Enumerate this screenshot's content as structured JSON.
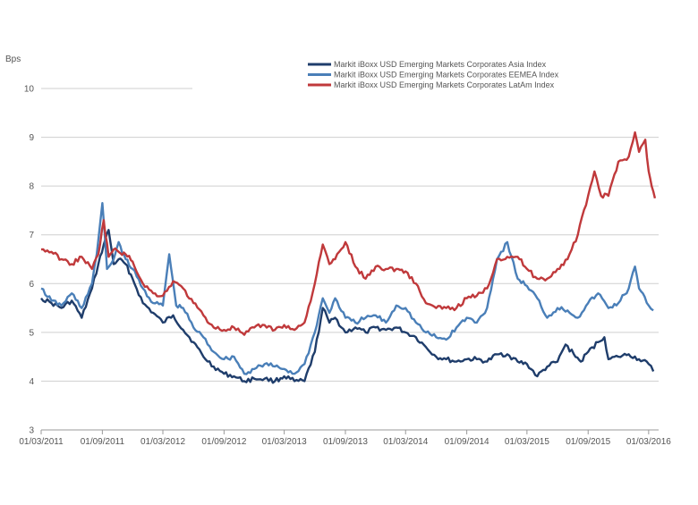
{
  "chart_data": {
    "type": "line",
    "ylabel": "Bps",
    "ylim": [
      3,
      10
    ],
    "yticks": [
      3,
      4,
      5,
      6,
      7,
      8,
      9,
      10
    ],
    "xlim": [
      "2011-03-01",
      "2016-03-31"
    ],
    "xtick_labels": [
      "01/03/2011",
      "01/09/2011",
      "01/03/2012",
      "01/09/2012",
      "01/03/2013",
      "01/09/2013",
      "01/03/2014",
      "01/09/2014",
      "01/03/2015",
      "01/09/2015",
      "01/03/2016"
    ],
    "xtick_dates": [
      "2011-03-01",
      "2011-09-01",
      "2012-03-01",
      "2012-09-01",
      "2013-03-01",
      "2013-09-01",
      "2014-03-01",
      "2014-09-01",
      "2015-03-01",
      "2015-09-01",
      "2016-03-01"
    ],
    "grid": true,
    "legend_position": "top-right",
    "series": [
      {
        "name": "Markit iBoxx USD Emerging Markets Corporates Asia Index",
        "color": "#1f3d6b",
        "points": [
          [
            "2011-03-01",
            5.7
          ],
          [
            "2011-04-01",
            5.6
          ],
          [
            "2011-05-01",
            5.5
          ],
          [
            "2011-06-01",
            5.65
          ],
          [
            "2011-07-01",
            5.3
          ],
          [
            "2011-08-01",
            5.9
          ],
          [
            "2011-08-20",
            6.4
          ],
          [
            "2011-09-05",
            6.8
          ],
          [
            "2011-09-20",
            7.1
          ],
          [
            "2011-10-05",
            6.4
          ],
          [
            "2011-10-20",
            6.5
          ],
          [
            "2011-11-10",
            6.4
          ],
          [
            "2011-12-01",
            6.1
          ],
          [
            "2012-01-01",
            5.6
          ],
          [
            "2012-02-01",
            5.4
          ],
          [
            "2012-03-01",
            5.2
          ],
          [
            "2012-04-01",
            5.35
          ],
          [
            "2012-05-01",
            5.05
          ],
          [
            "2012-06-01",
            4.8
          ],
          [
            "2012-07-01",
            4.5
          ],
          [
            "2012-08-01",
            4.3
          ],
          [
            "2012-09-01",
            4.15
          ],
          [
            "2012-10-01",
            4.1
          ],
          [
            "2012-11-01",
            4.0
          ],
          [
            "2012-12-01",
            4.05
          ],
          [
            "2013-01-01",
            4.05
          ],
          [
            "2013-02-01",
            4.0
          ],
          [
            "2013-03-01",
            4.1
          ],
          [
            "2013-04-01",
            4.0
          ],
          [
            "2013-05-01",
            4.0
          ],
          [
            "2013-06-01",
            4.6
          ],
          [
            "2013-06-25",
            5.5
          ],
          [
            "2013-07-15",
            5.2
          ],
          [
            "2013-08-01",
            5.3
          ],
          [
            "2013-09-01",
            5.0
          ],
          [
            "2013-10-01",
            5.1
          ],
          [
            "2013-11-01",
            5.0
          ],
          [
            "2013-12-01",
            5.1
          ],
          [
            "2014-01-01",
            5.05
          ],
          [
            "2014-02-01",
            5.1
          ],
          [
            "2014-03-01",
            5.0
          ],
          [
            "2014-04-01",
            4.9
          ],
          [
            "2014-05-01",
            4.7
          ],
          [
            "2014-06-01",
            4.5
          ],
          [
            "2014-07-01",
            4.45
          ],
          [
            "2014-08-01",
            4.4
          ],
          [
            "2014-09-01",
            4.45
          ],
          [
            "2014-10-01",
            4.45
          ],
          [
            "2014-11-01",
            4.4
          ],
          [
            "2014-12-01",
            4.55
          ],
          [
            "2015-01-01",
            4.55
          ],
          [
            "2015-02-01",
            4.4
          ],
          [
            "2015-03-01",
            4.35
          ],
          [
            "2015-04-01",
            4.1
          ],
          [
            "2015-05-01",
            4.3
          ],
          [
            "2015-06-01",
            4.4
          ],
          [
            "2015-06-25",
            4.75
          ],
          [
            "2015-07-20",
            4.55
          ],
          [
            "2015-08-10",
            4.4
          ],
          [
            "2015-09-01",
            4.6
          ],
          [
            "2015-10-01",
            4.8
          ],
          [
            "2015-10-20",
            4.9
          ],
          [
            "2015-11-01",
            4.45
          ],
          [
            "2015-12-01",
            4.5
          ],
          [
            "2016-01-01",
            4.55
          ],
          [
            "2016-02-01",
            4.45
          ],
          [
            "2016-03-01",
            4.35
          ],
          [
            "2016-03-15",
            4.2
          ]
        ]
      },
      {
        "name": "Markit iBoxx USD Emerging Markets Corporates EEMEA Index",
        "color": "#4a7fb8",
        "points": [
          [
            "2011-03-01",
            5.9
          ],
          [
            "2011-04-01",
            5.65
          ],
          [
            "2011-05-01",
            5.55
          ],
          [
            "2011-06-01",
            5.8
          ],
          [
            "2011-07-01",
            5.5
          ],
          [
            "2011-08-01",
            6.0
          ],
          [
            "2011-08-15",
            6.6
          ],
          [
            "2011-09-01",
            7.65
          ],
          [
            "2011-09-15",
            6.3
          ],
          [
            "2011-10-05",
            6.5
          ],
          [
            "2011-10-20",
            6.85
          ],
          [
            "2011-11-10",
            6.5
          ],
          [
            "2011-12-01",
            6.3
          ],
          [
            "2012-01-01",
            5.9
          ],
          [
            "2012-02-01",
            5.6
          ],
          [
            "2012-03-01",
            5.55
          ],
          [
            "2012-03-20",
            6.6
          ],
          [
            "2012-04-10",
            5.55
          ],
          [
            "2012-05-01",
            5.5
          ],
          [
            "2012-06-01",
            5.1
          ],
          [
            "2012-07-01",
            4.9
          ],
          [
            "2012-08-01",
            4.6
          ],
          [
            "2012-09-01",
            4.45
          ],
          [
            "2012-10-01",
            4.5
          ],
          [
            "2012-11-01",
            4.15
          ],
          [
            "2012-12-01",
            4.25
          ],
          [
            "2013-01-01",
            4.35
          ],
          [
            "2013-02-01",
            4.3
          ],
          [
            "2013-03-01",
            4.25
          ],
          [
            "2013-04-01",
            4.15
          ],
          [
            "2013-05-01",
            4.35
          ],
          [
            "2013-06-01",
            5.0
          ],
          [
            "2013-06-25",
            5.7
          ],
          [
            "2013-07-15",
            5.4
          ],
          [
            "2013-08-01",
            5.7
          ],
          [
            "2013-09-01",
            5.3
          ],
          [
            "2013-10-01",
            5.2
          ],
          [
            "2013-11-01",
            5.3
          ],
          [
            "2013-12-01",
            5.35
          ],
          [
            "2014-01-01",
            5.2
          ],
          [
            "2014-02-01",
            5.55
          ],
          [
            "2014-03-01",
            5.5
          ],
          [
            "2014-04-01",
            5.2
          ],
          [
            "2014-05-01",
            5.0
          ],
          [
            "2014-06-01",
            4.9
          ],
          [
            "2014-07-01",
            4.85
          ],
          [
            "2014-08-01",
            5.1
          ],
          [
            "2014-09-01",
            5.3
          ],
          [
            "2014-10-01",
            5.2
          ],
          [
            "2014-11-01",
            5.5
          ],
          [
            "2014-12-01",
            6.5
          ],
          [
            "2015-01-01",
            6.85
          ],
          [
            "2015-02-01",
            6.1
          ],
          [
            "2015-03-01",
            5.95
          ],
          [
            "2015-04-01",
            5.7
          ],
          [
            "2015-05-01",
            5.3
          ],
          [
            "2015-06-01",
            5.5
          ],
          [
            "2015-07-01",
            5.45
          ],
          [
            "2015-08-01",
            5.3
          ],
          [
            "2015-09-01",
            5.6
          ],
          [
            "2015-10-01",
            5.8
          ],
          [
            "2015-11-01",
            5.5
          ],
          [
            "2015-12-01",
            5.6
          ],
          [
            "2016-01-01",
            5.9
          ],
          [
            "2016-01-20",
            6.35
          ],
          [
            "2016-02-01",
            5.9
          ],
          [
            "2016-03-01",
            5.55
          ],
          [
            "2016-03-15",
            5.45
          ]
        ]
      },
      {
        "name": "Markit iBoxx USD Emerging Markets Corporates LatAm Index",
        "color": "#c0393b",
        "points": [
          [
            "2011-03-01",
            6.7
          ],
          [
            "2011-04-01",
            6.65
          ],
          [
            "2011-05-01",
            6.5
          ],
          [
            "2011-06-01",
            6.4
          ],
          [
            "2011-07-01",
            6.55
          ],
          [
            "2011-08-01",
            6.3
          ],
          [
            "2011-08-20",
            6.6
          ],
          [
            "2011-09-05",
            7.3
          ],
          [
            "2011-09-20",
            6.55
          ],
          [
            "2011-10-05",
            6.7
          ],
          [
            "2011-10-20",
            6.65
          ],
          [
            "2011-11-10",
            6.6
          ],
          [
            "2011-12-01",
            6.45
          ],
          [
            "2012-01-01",
            6.0
          ],
          [
            "2012-02-01",
            5.8
          ],
          [
            "2012-03-01",
            5.75
          ],
          [
            "2012-04-01",
            6.05
          ],
          [
            "2012-05-01",
            5.9
          ],
          [
            "2012-06-01",
            5.6
          ],
          [
            "2012-07-01",
            5.35
          ],
          [
            "2012-08-01",
            5.1
          ],
          [
            "2012-09-01",
            5.05
          ],
          [
            "2012-10-01",
            5.1
          ],
          [
            "2012-11-01",
            4.95
          ],
          [
            "2012-12-01",
            5.1
          ],
          [
            "2013-01-01",
            5.15
          ],
          [
            "2013-02-01",
            5.05
          ],
          [
            "2013-03-01",
            5.15
          ],
          [
            "2013-04-01",
            5.05
          ],
          [
            "2013-05-01",
            5.2
          ],
          [
            "2013-06-01",
            6.0
          ],
          [
            "2013-06-25",
            6.8
          ],
          [
            "2013-07-15",
            6.4
          ],
          [
            "2013-08-01",
            6.5
          ],
          [
            "2013-09-01",
            6.85
          ],
          [
            "2013-10-01",
            6.35
          ],
          [
            "2013-11-01",
            6.1
          ],
          [
            "2013-12-01",
            6.35
          ],
          [
            "2014-01-01",
            6.3
          ],
          [
            "2014-02-01",
            6.3
          ],
          [
            "2014-03-01",
            6.25
          ],
          [
            "2014-04-01",
            6.0
          ],
          [
            "2014-05-01",
            5.6
          ],
          [
            "2014-06-01",
            5.5
          ],
          [
            "2014-07-01",
            5.5
          ],
          [
            "2014-08-01",
            5.5
          ],
          [
            "2014-09-01",
            5.7
          ],
          [
            "2014-10-01",
            5.75
          ],
          [
            "2014-11-01",
            5.9
          ],
          [
            "2014-12-01",
            6.5
          ],
          [
            "2015-01-01",
            6.55
          ],
          [
            "2015-02-01",
            6.55
          ],
          [
            "2015-03-01",
            6.3
          ],
          [
            "2015-04-01",
            6.1
          ],
          [
            "2015-05-01",
            6.1
          ],
          [
            "2015-06-01",
            6.3
          ],
          [
            "2015-07-01",
            6.5
          ],
          [
            "2015-08-01",
            7.0
          ],
          [
            "2015-09-01",
            7.8
          ],
          [
            "2015-09-20",
            8.3
          ],
          [
            "2015-10-10",
            7.8
          ],
          [
            "2015-11-01",
            7.8
          ],
          [
            "2015-12-01",
            8.5
          ],
          [
            "2016-01-01",
            8.6
          ],
          [
            "2016-01-20",
            9.1
          ],
          [
            "2016-02-01",
            8.7
          ],
          [
            "2016-02-20",
            8.95
          ],
          [
            "2016-03-01",
            8.3
          ],
          [
            "2016-03-10",
            8.0
          ],
          [
            "2016-03-20",
            7.75
          ]
        ]
      }
    ]
  }
}
